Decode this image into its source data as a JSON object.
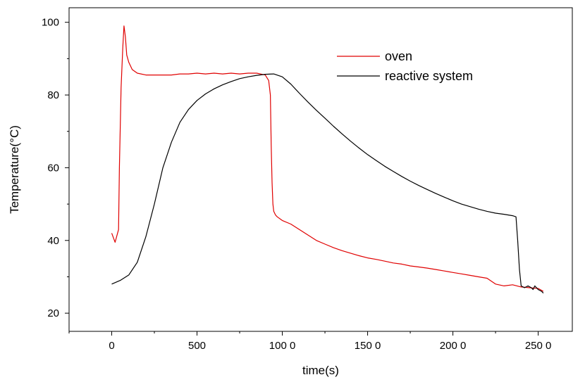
{
  "chart_data": {
    "type": "line",
    "title": "",
    "xlabel": "time(s)",
    "ylabel": "Temperature(°C)",
    "xlim": [
      -250,
      2700
    ],
    "ylim": [
      15,
      104
    ],
    "x_ticks": [
      0,
      500,
      1000,
      1500,
      2000,
      2500
    ],
    "x_tick_labels": [
      "0",
      "500",
      "100 0",
      "150 0",
      "200 0",
      "250 0"
    ],
    "y_ticks": [
      20,
      40,
      60,
      80,
      100
    ],
    "y_tick_labels": [
      "20",
      "40",
      "60",
      "80",
      "100"
    ],
    "grid": false,
    "legend_position": "top-right",
    "series": [
      {
        "name": "oven",
        "color": "#e00000",
        "x": [
          0,
          20,
          40,
          45,
          55,
          65,
          72,
          80,
          88,
          100,
          120,
          150,
          200,
          250,
          300,
          350,
          400,
          450,
          500,
          550,
          600,
          650,
          700,
          750,
          800,
          850,
          900,
          920,
          930,
          935,
          940,
          945,
          950,
          960,
          970,
          1000,
          1050,
          1100,
          1150,
          1200,
          1250,
          1300,
          1350,
          1400,
          1450,
          1500,
          1550,
          1600,
          1650,
          1700,
          1750,
          1800,
          1850,
          1900,
          1950,
          2000,
          2050,
          2100,
          2150,
          2200,
          2250,
          2300,
          2350,
          2400,
          2450,
          2500,
          2530
        ],
        "y": [
          42,
          39.5,
          43,
          60,
          82,
          93,
          99,
          96,
          91,
          89,
          87,
          86,
          85.5,
          85.5,
          85.5,
          85.5,
          85.8,
          85.8,
          86,
          85.8,
          86,
          85.8,
          86,
          85.8,
          86,
          86,
          85.5,
          84,
          80,
          66,
          56,
          50,
          48,
          47,
          46.5,
          45.5,
          44.5,
          43,
          41.5,
          40,
          39,
          38,
          37.2,
          36.5,
          35.8,
          35.2,
          34.8,
          34.3,
          33.8,
          33.5,
          33,
          32.7,
          32.4,
          32,
          31.6,
          31.2,
          30.8,
          30.4,
          30,
          29.6,
          28,
          27.5,
          27.8,
          27.2,
          27,
          26.8,
          26
        ]
      },
      {
        "name": "reactive system",
        "color": "#000000",
        "x": [
          0,
          50,
          100,
          150,
          200,
          250,
          300,
          350,
          400,
          450,
          500,
          550,
          600,
          650,
          700,
          750,
          800,
          850,
          900,
          950,
          1000,
          1050,
          1100,
          1150,
          1200,
          1250,
          1300,
          1350,
          1400,
          1450,
          1500,
          1550,
          1600,
          1650,
          1700,
          1750,
          1800,
          1850,
          1900,
          1950,
          2000,
          2050,
          2100,
          2150,
          2200,
          2250,
          2300,
          2350,
          2370,
          2380,
          2390,
          2400,
          2420,
          2440,
          2460,
          2470,
          2480,
          2500,
          2520,
          2530
        ],
        "y": [
          28,
          29,
          30.5,
          34,
          41,
          50,
          60,
          67,
          72.5,
          76,
          78.5,
          80.3,
          81.7,
          82.8,
          83.7,
          84.5,
          85,
          85.4,
          85.7,
          85.8,
          85,
          83,
          80.5,
          78.1,
          75.8,
          73.6,
          71.4,
          69.3,
          67.3,
          65.4,
          63.6,
          62,
          60.4,
          59,
          57.6,
          56.3,
          55.1,
          54,
          52.9,
          51.9,
          50.9,
          50,
          49.3,
          48.6,
          48,
          47.5,
          47.2,
          46.8,
          46.5,
          40,
          32,
          27.5,
          27,
          27.5,
          27,
          26.5,
          27.5,
          26.5,
          26,
          25.5
        ]
      }
    ]
  }
}
